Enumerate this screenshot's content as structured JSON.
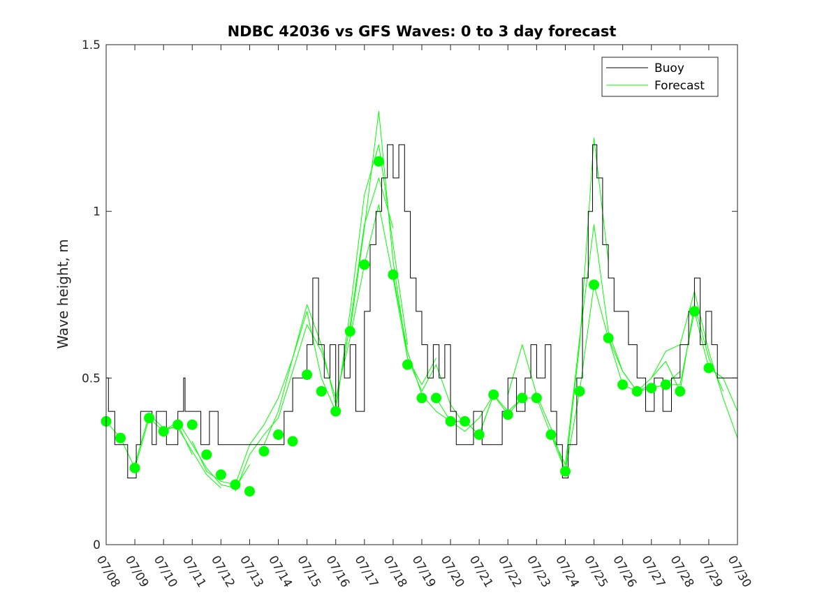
{
  "chart_data": {
    "type": "line",
    "title": "NDBC 42036 vs GFS Waves: 0 to 3 day forecast",
    "xlabel": "",
    "ylabel": "Wave height, m",
    "ylim": [
      0,
      1.5
    ],
    "yticks": [
      0,
      0.5,
      1,
      1.5
    ],
    "ytick_labels": [
      "0",
      "0.5",
      "1",
      "1.5"
    ],
    "xlim": [
      0,
      22
    ],
    "xtick_labels": [
      "07/08",
      "07/09",
      "07/10",
      "07/11",
      "07/12",
      "07/13",
      "07/14",
      "07/15",
      "07/16",
      "07/17",
      "07/18",
      "07/19",
      "07/20",
      "07/21",
      "07/22",
      "07/23",
      "07/24",
      "07/25",
      "07/26",
      "07/27",
      "07/28",
      "07/29",
      "07/30"
    ],
    "grid": false,
    "legend_position": "top-right",
    "colors": {
      "buoy": "#000000",
      "forecast": "#00ff00"
    },
    "legend": [
      {
        "label": "Buoy",
        "color": "#000000"
      },
      {
        "label": "Forecast",
        "color": "#00ff00"
      }
    ],
    "series": [
      {
        "name": "Buoy",
        "kind": "step",
        "points": [
          [
            0,
            0.5
          ],
          [
            0.08,
            0.4
          ],
          [
            0.25,
            0.4
          ],
          [
            0.3,
            0.3
          ],
          [
            0.6,
            0.3
          ],
          [
            0.75,
            0.2
          ],
          [
            1.05,
            0.3
          ],
          [
            1.2,
            0.4
          ],
          [
            1.5,
            0.4
          ],
          [
            1.6,
            0.3
          ],
          [
            1.75,
            0.4
          ],
          [
            2.1,
            0.3
          ],
          [
            2.4,
            0.3
          ],
          [
            2.5,
            0.4
          ],
          [
            2.7,
            0.5
          ],
          [
            2.75,
            0.4
          ],
          [
            3.3,
            0.3
          ],
          [
            3.5,
            0.3
          ],
          [
            3.6,
            0.4
          ],
          [
            3.9,
            0.3
          ],
          [
            4.2,
            0.3
          ],
          [
            5.5,
            0.3
          ],
          [
            6.0,
            0.3
          ],
          [
            6.2,
            0.4
          ],
          [
            6.5,
            0.5
          ],
          [
            7.0,
            0.6
          ],
          [
            7.2,
            0.8
          ],
          [
            7.4,
            0.6
          ],
          [
            7.6,
            0.5
          ],
          [
            7.8,
            0.6
          ],
          [
            8.0,
            0.4
          ],
          [
            8.1,
            0.6
          ],
          [
            8.3,
            0.5
          ],
          [
            8.5,
            0.6
          ],
          [
            8.7,
            0.4
          ],
          [
            9.0,
            0.7
          ],
          [
            9.2,
            0.9
          ],
          [
            9.4,
            1.0
          ],
          [
            9.6,
            1.1
          ],
          [
            9.8,
            1.2
          ],
          [
            10.0,
            1.1
          ],
          [
            10.2,
            1.2
          ],
          [
            10.4,
            1.0
          ],
          [
            10.6,
            0.8
          ],
          [
            10.8,
            0.7
          ],
          [
            11.0,
            0.6
          ],
          [
            11.2,
            0.5
          ],
          [
            11.4,
            0.6
          ],
          [
            11.6,
            0.5
          ],
          [
            11.8,
            0.6
          ],
          [
            12.0,
            0.4
          ],
          [
            12.2,
            0.3
          ],
          [
            12.6,
            0.3
          ],
          [
            12.8,
            0.4
          ],
          [
            13.1,
            0.3
          ],
          [
            13.5,
            0.3
          ],
          [
            13.8,
            0.4
          ],
          [
            14.0,
            0.5
          ],
          [
            14.3,
            0.4
          ],
          [
            14.6,
            0.5
          ],
          [
            14.8,
            0.6
          ],
          [
            15.0,
            0.5
          ],
          [
            15.3,
            0.6
          ],
          [
            15.5,
            0.4
          ],
          [
            15.7,
            0.3
          ],
          [
            15.9,
            0.2
          ],
          [
            16.1,
            0.3
          ],
          [
            16.4,
            0.5
          ],
          [
            16.6,
            0.8
          ],
          [
            16.8,
            1.0
          ],
          [
            16.95,
            1.2
          ],
          [
            17.1,
            1.1
          ],
          [
            17.3,
            0.9
          ],
          [
            17.5,
            0.8
          ],
          [
            17.7,
            0.7
          ],
          [
            17.9,
            0.7
          ],
          [
            18.2,
            0.6
          ],
          [
            18.5,
            0.5
          ],
          [
            18.8,
            0.4
          ],
          [
            19.1,
            0.5
          ],
          [
            19.4,
            0.4
          ],
          [
            19.7,
            0.5
          ],
          [
            20.0,
            0.6
          ],
          [
            20.3,
            0.7
          ],
          [
            20.5,
            0.8
          ],
          [
            20.7,
            0.6
          ],
          [
            20.9,
            0.7
          ],
          [
            21.1,
            0.6
          ],
          [
            21.3,
            0.5
          ],
          [
            22.0,
            0.5
          ]
        ]
      },
      {
        "name": "Forecast",
        "kind": "runs",
        "runs": [
          [
            [
              0,
              0.37
            ],
            [
              0.5,
              0.32
            ],
            [
              1.0,
              0.23
            ],
            [
              1.5,
              0.38
            ],
            [
              2.0,
              0.34
            ],
            [
              2.5,
              0.36
            ],
            [
              3.0,
              0.27
            ]
          ],
          [
            [
              1.0,
              0.24
            ],
            [
              1.5,
              0.39
            ],
            [
              2.0,
              0.35
            ],
            [
              2.5,
              0.35
            ],
            [
              3.0,
              0.28
            ],
            [
              3.5,
              0.21
            ],
            [
              4.0,
              0.17
            ]
          ],
          [
            [
              2.0,
              0.34
            ],
            [
              2.5,
              0.37
            ],
            [
              3.0,
              0.3
            ],
            [
              3.5,
              0.23
            ],
            [
              4.0,
              0.18
            ],
            [
              4.5,
              0.17
            ],
            [
              5.0,
              0.24
            ]
          ],
          [
            [
              3.0,
              0.31
            ],
            [
              3.5,
              0.22
            ],
            [
              4.0,
              0.19
            ],
            [
              4.5,
              0.18
            ],
            [
              5.0,
              0.3
            ],
            [
              5.5,
              0.36
            ],
            [
              6.0,
              0.44
            ],
            [
              6.5,
              0.56
            ],
            [
              7.0,
              0.7
            ]
          ],
          [
            [
              4.5,
              0.16
            ],
            [
              5.0,
              0.27
            ],
            [
              5.5,
              0.33
            ],
            [
              6.0,
              0.38
            ],
            [
              6.5,
              0.52
            ],
            [
              7.0,
              0.66
            ],
            [
              7.5,
              0.58
            ],
            [
              8.0,
              0.44
            ],
            [
              8.5,
              0.62
            ],
            [
              9.0,
              0.84
            ]
          ],
          [
            [
              5.5,
              0.3
            ],
            [
              6.0,
              0.4
            ],
            [
              6.5,
              0.56
            ],
            [
              7.0,
              0.72
            ],
            [
              7.5,
              0.6
            ],
            [
              8.0,
              0.42
            ],
            [
              8.5,
              0.66
            ],
            [
              9.0,
              0.96
            ],
            [
              9.5,
              1.1
            ],
            [
              10.0,
              0.95
            ]
          ],
          [
            [
              7.0,
              0.7
            ],
            [
              7.5,
              0.5
            ],
            [
              8.0,
              0.4
            ],
            [
              8.5,
              0.7
            ],
            [
              9.0,
              1.05
            ],
            [
              9.5,
              1.2
            ],
            [
              10.0,
              0.9
            ],
            [
              10.5,
              0.6
            ]
          ],
          [
            [
              8.5,
              0.64
            ],
            [
              9.0,
              0.95
            ],
            [
              9.5,
              1.3
            ],
            [
              10.0,
              0.85
            ],
            [
              10.5,
              0.56
            ],
            [
              11.0,
              0.48
            ],
            [
              11.5,
              0.56
            ]
          ],
          [
            [
              9.0,
              0.84
            ],
            [
              9.5,
              1.02
            ],
            [
              10.0,
              0.8
            ],
            [
              10.5,
              0.56
            ],
            [
              11.0,
              0.46
            ],
            [
              11.5,
              0.54
            ],
            [
              12.0,
              0.42
            ],
            [
              12.5,
              0.36
            ]
          ],
          [
            [
              10.0,
              0.81
            ],
            [
              10.5,
              0.58
            ],
            [
              11.0,
              0.45
            ],
            [
              11.5,
              0.4
            ],
            [
              12.0,
              0.37
            ],
            [
              12.5,
              0.34
            ],
            [
              13.0,
              0.38
            ],
            [
              13.5,
              0.45
            ]
          ],
          [
            [
              11.5,
              0.44
            ],
            [
              12.0,
              0.37
            ],
            [
              12.5,
              0.37
            ],
            [
              13.0,
              0.33
            ],
            [
              13.5,
              0.45
            ],
            [
              14.0,
              0.4
            ],
            [
              14.5,
              0.44
            ]
          ],
          [
            [
              13.0,
              0.33
            ],
            [
              13.5,
              0.45
            ],
            [
              14.0,
              0.39
            ],
            [
              14.5,
              0.44
            ],
            [
              15.0,
              0.44
            ],
            [
              15.5,
              0.33
            ],
            [
              16.0,
              0.22
            ],
            [
              16.5,
              0.46
            ]
          ],
          [
            [
              14.0,
              0.45
            ],
            [
              14.5,
              0.6
            ],
            [
              15.0,
              0.45
            ],
            [
              15.5,
              0.35
            ],
            [
              16.0,
              0.22
            ],
            [
              16.5,
              0.6
            ],
            [
              17.0,
              1.22
            ],
            [
              17.5,
              0.85
            ]
          ],
          [
            [
              15.5,
              0.33
            ],
            [
              16.0,
              0.24
            ],
            [
              16.5,
              0.62
            ],
            [
              17.0,
              0.96
            ],
            [
              17.5,
              0.64
            ],
            [
              18.0,
              0.52
            ],
            [
              18.5,
              0.46
            ],
            [
              19.0,
              0.48
            ]
          ],
          [
            [
              16.5,
              0.46
            ],
            [
              17.0,
              0.78
            ],
            [
              17.5,
              0.62
            ],
            [
              18.0,
              0.48
            ],
            [
              18.5,
              0.46
            ],
            [
              19.0,
              0.47
            ],
            [
              19.5,
              0.48
            ],
            [
              20.0,
              0.52
            ]
          ],
          [
            [
              17.5,
              0.62
            ],
            [
              18.0,
              0.52
            ],
            [
              18.5,
              0.46
            ],
            [
              19.0,
              0.5
            ],
            [
              19.5,
              0.55
            ],
            [
              20.0,
              0.46
            ],
            [
              20.5,
              0.72
            ],
            [
              21.0,
              0.56
            ],
            [
              21.5,
              0.46
            ]
          ],
          [
            [
              18.5,
              0.46
            ],
            [
              19.0,
              0.47
            ],
            [
              19.5,
              0.48
            ],
            [
              20.0,
              0.48
            ],
            [
              20.5,
              0.7
            ],
            [
              21.0,
              0.53
            ],
            [
              21.5,
              0.5
            ],
            [
              22.0,
              0.4
            ]
          ],
          [
            [
              19.0,
              0.5
            ],
            [
              19.5,
              0.58
            ],
            [
              20.0,
              0.6
            ],
            [
              20.5,
              0.76
            ],
            [
              21.0,
              0.58
            ],
            [
              21.5,
              0.44
            ],
            [
              22.0,
              0.32
            ]
          ]
        ]
      },
      {
        "name": "",
        "kind": "markers",
        "points": [
          [
            0,
            0.37
          ],
          [
            0.5,
            0.32
          ],
          [
            1.0,
            0.23
          ],
          [
            1.5,
            0.38
          ],
          [
            2.0,
            0.34
          ],
          [
            2.5,
            0.36
          ],
          [
            3.0,
            0.36
          ],
          [
            3.5,
            0.27
          ],
          [
            4.0,
            0.21
          ],
          [
            4.5,
            0.18
          ],
          [
            5.0,
            0.16
          ],
          [
            5.5,
            0.28
          ],
          [
            6.0,
            0.33
          ],
          [
            6.5,
            0.31
          ],
          [
            7.0,
            0.51
          ],
          [
            7.5,
            0.46
          ],
          [
            8.0,
            0.4
          ],
          [
            8.5,
            0.64
          ],
          [
            9.0,
            0.84
          ],
          [
            9.5,
            1.15
          ],
          [
            10.0,
            0.81
          ],
          [
            10.5,
            0.54
          ],
          [
            11.0,
            0.44
          ],
          [
            11.5,
            0.44
          ],
          [
            12.0,
            0.37
          ],
          [
            12.5,
            0.37
          ],
          [
            13.0,
            0.33
          ],
          [
            13.5,
            0.45
          ],
          [
            14.0,
            0.39
          ],
          [
            14.5,
            0.44
          ],
          [
            15.0,
            0.44
          ],
          [
            15.5,
            0.33
          ],
          [
            16.0,
            0.22
          ],
          [
            16.5,
            0.46
          ],
          [
            17.0,
            0.78
          ],
          [
            17.5,
            0.62
          ],
          [
            18.0,
            0.48
          ],
          [
            18.5,
            0.46
          ],
          [
            19.0,
            0.47
          ],
          [
            19.5,
            0.48
          ],
          [
            20.0,
            0.46
          ],
          [
            20.5,
            0.7
          ],
          [
            21.0,
            0.53
          ]
        ]
      }
    ]
  }
}
